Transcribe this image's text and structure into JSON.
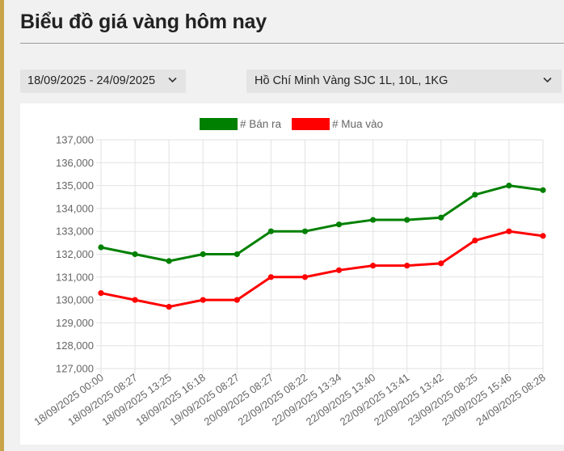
{
  "page": {
    "title": "Biểu đồ giá vàng hôm nay"
  },
  "filters": {
    "date_range": "18/09/2025 - 24/09/2025",
    "product": "Hồ Chí Minh Vàng SJC 1L, 10L, 1KG"
  },
  "icons": {
    "dropdown": "chevron-down-icon"
  },
  "colors": {
    "sell": "#008000",
    "buy": "#ff0000",
    "accent": "#c9a449"
  },
  "chart_data": {
    "type": "line",
    "title": "",
    "xlabel": "",
    "ylabel": "",
    "ylim": [
      127000,
      137000
    ],
    "yticks": [
      127000,
      128000,
      129000,
      130000,
      131000,
      132000,
      133000,
      134000,
      135000,
      136000,
      137000
    ],
    "ytick_labels": [
      "127,000",
      "128,000",
      "129,000",
      "130,000",
      "131,000",
      "132,000",
      "133,000",
      "134,000",
      "135,000",
      "136,000",
      "137,000"
    ],
    "grid": true,
    "legend_position": "top",
    "categories": [
      "18/09/2025 00:00",
      "18/09/2025 08:27",
      "18/09/2025 13:25",
      "18/09/2025 16:18",
      "19/09/2025 08:27",
      "20/09/2025 08:27",
      "22/09/2025 08:22",
      "22/09/2025 13:34",
      "22/09/2025 13:40",
      "22/09/2025 13:41",
      "22/09/2025 13:42",
      "23/09/2025 08:25",
      "23/09/2025 15:46",
      "24/09/2025 08:28"
    ],
    "series": [
      {
        "name": "# Bán ra",
        "color": "#008000",
        "values": [
          132300,
          132000,
          131700,
          132000,
          132000,
          133000,
          133000,
          133300,
          133500,
          133500,
          133600,
          134600,
          135000,
          134800
        ]
      },
      {
        "name": "# Mua vào",
        "color": "#ff0000",
        "values": [
          130300,
          130000,
          129700,
          130000,
          130000,
          131000,
          131000,
          131300,
          131500,
          131500,
          131600,
          132600,
          133000,
          132800
        ]
      }
    ]
  }
}
